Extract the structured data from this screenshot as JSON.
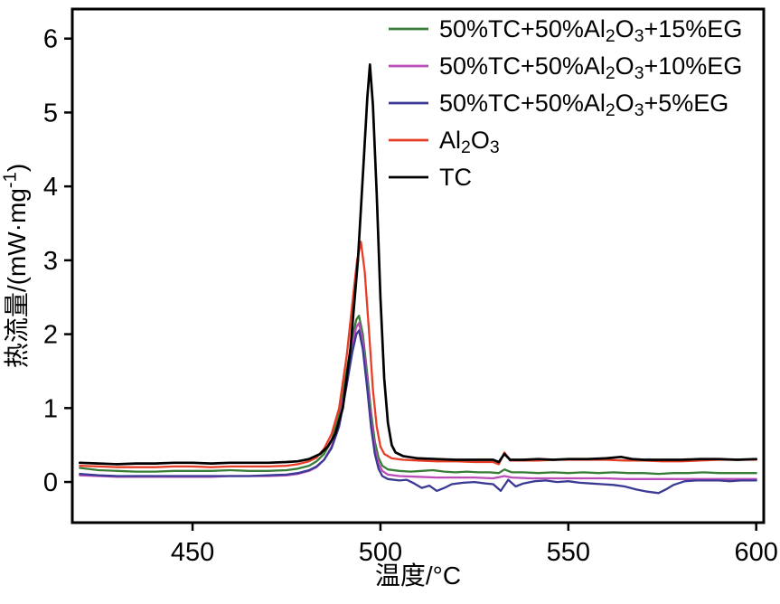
{
  "chart_data": {
    "type": "line",
    "title": "",
    "xlabel": "温度/°C",
    "ylabel": "热流量/(mW·mg^{-1})",
    "xlim": [
      418,
      602
    ],
    "ylim": [
      -0.55,
      6.4
    ],
    "xticks": [
      450,
      500,
      550,
      600
    ],
    "yticks": [
      0,
      1,
      2,
      3,
      4,
      5,
      6
    ],
    "legend_position": "upper right inside, no frame",
    "grid": false,
    "series": [
      {
        "id": "tc-al2o3-15eg",
        "label": "50%TC+50%Al_{2}O_{3}+15%EG",
        "color": "#377d37",
        "peak_x": 494.3,
        "peak_y": 2.25,
        "points": [
          [
            420,
            0.19
          ],
          [
            425,
            0.16
          ],
          [
            430,
            0.15
          ],
          [
            435,
            0.14
          ],
          [
            440,
            0.14
          ],
          [
            445,
            0.15
          ],
          [
            450,
            0.15
          ],
          [
            455,
            0.15
          ],
          [
            460,
            0.16
          ],
          [
            465,
            0.15
          ],
          [
            470,
            0.15
          ],
          [
            475,
            0.16
          ],
          [
            478,
            0.18
          ],
          [
            481,
            0.22
          ],
          [
            483,
            0.28
          ],
          [
            485,
            0.38
          ],
          [
            487,
            0.56
          ],
          [
            489,
            0.9
          ],
          [
            491,
            1.5
          ],
          [
            492.5,
            1.95
          ],
          [
            493.6,
            2.2
          ],
          [
            494.3,
            2.25
          ],
          [
            495.3,
            2.0
          ],
          [
            496.5,
            1.45
          ],
          [
            497.5,
            0.95
          ],
          [
            498.5,
            0.55
          ],
          [
            499.5,
            0.33
          ],
          [
            500.5,
            0.22
          ],
          [
            502,
            0.17
          ],
          [
            505,
            0.15
          ],
          [
            508,
            0.14
          ],
          [
            511,
            0.15
          ],
          [
            514,
            0.16
          ],
          [
            517,
            0.14
          ],
          [
            520,
            0.13
          ],
          [
            523,
            0.14
          ],
          [
            526,
            0.13
          ],
          [
            529,
            0.13
          ],
          [
            531.5,
            0.12
          ],
          [
            533,
            0.17
          ],
          [
            535,
            0.13
          ],
          [
            538,
            0.13
          ],
          [
            542,
            0.12
          ],
          [
            546,
            0.13
          ],
          [
            550,
            0.12
          ],
          [
            554,
            0.13
          ],
          [
            558,
            0.12
          ],
          [
            562,
            0.13
          ],
          [
            566,
            0.12
          ],
          [
            570,
            0.12
          ],
          [
            574,
            0.11
          ],
          [
            578,
            0.12
          ],
          [
            582,
            0.12
          ],
          [
            586,
            0.13
          ],
          [
            590,
            0.12
          ],
          [
            595,
            0.12
          ],
          [
            600,
            0.12
          ]
        ]
      },
      {
        "id": "tc-al2o3-10eg",
        "label": "50%TC+50%Al_{2}O_{3}+10%EG",
        "color": "#bb4dbb",
        "peak_x": 494.3,
        "peak_y": 2.15,
        "points": [
          [
            420,
            0.09
          ],
          [
            425,
            0.08
          ],
          [
            430,
            0.07
          ],
          [
            435,
            0.07
          ],
          [
            440,
            0.07
          ],
          [
            445,
            0.07
          ],
          [
            450,
            0.07
          ],
          [
            455,
            0.07
          ],
          [
            460,
            0.08
          ],
          [
            465,
            0.08
          ],
          [
            470,
            0.08
          ],
          [
            475,
            0.09
          ],
          [
            478,
            0.11
          ],
          [
            481,
            0.15
          ],
          [
            483,
            0.2
          ],
          [
            485,
            0.3
          ],
          [
            487,
            0.48
          ],
          [
            489,
            0.8
          ],
          [
            491,
            1.4
          ],
          [
            492.5,
            1.85
          ],
          [
            493.6,
            2.1
          ],
          [
            494.3,
            2.15
          ],
          [
            495.3,
            1.9
          ],
          [
            496.5,
            1.35
          ],
          [
            497.5,
            0.85
          ],
          [
            498.5,
            0.45
          ],
          [
            499.5,
            0.25
          ],
          [
            500.5,
            0.15
          ],
          [
            502,
            0.1
          ],
          [
            505,
            0.08
          ],
          [
            510,
            0.07
          ],
          [
            515,
            0.06
          ],
          [
            520,
            0.06
          ],
          [
            525,
            0.06
          ],
          [
            530,
            0.05
          ],
          [
            533,
            0.08
          ],
          [
            535,
            0.06
          ],
          [
            540,
            0.05
          ],
          [
            545,
            0.05
          ],
          [
            550,
            0.05
          ],
          [
            555,
            0.05
          ],
          [
            560,
            0.05
          ],
          [
            565,
            0.04
          ],
          [
            570,
            0.04
          ],
          [
            575,
            0.04
          ],
          [
            580,
            0.04
          ],
          [
            585,
            0.04
          ],
          [
            590,
            0.04
          ],
          [
            595,
            0.04
          ],
          [
            600,
            0.04
          ]
        ]
      },
      {
        "id": "tc-al2o3-5eg",
        "label": "50%TC+50%Al_{2}O_{3}+5%EG",
        "color": "#3a3a94",
        "peak_x": 494.3,
        "peak_y": 2.05,
        "points": [
          [
            420,
            0.11
          ],
          [
            425,
            0.09
          ],
          [
            430,
            0.08
          ],
          [
            435,
            0.08
          ],
          [
            440,
            0.08
          ],
          [
            445,
            0.08
          ],
          [
            450,
            0.08
          ],
          [
            455,
            0.08
          ],
          [
            460,
            0.08
          ],
          [
            465,
            0.08
          ],
          [
            470,
            0.09
          ],
          [
            475,
            0.1
          ],
          [
            478,
            0.12
          ],
          [
            481,
            0.16
          ],
          [
            483,
            0.21
          ],
          [
            485,
            0.3
          ],
          [
            487,
            0.46
          ],
          [
            489,
            0.75
          ],
          [
            491,
            1.3
          ],
          [
            492.5,
            1.75
          ],
          [
            493.6,
            2.0
          ],
          [
            494.3,
            2.05
          ],
          [
            495.3,
            1.8
          ],
          [
            496.5,
            1.25
          ],
          [
            497.5,
            0.75
          ],
          [
            498.5,
            0.38
          ],
          [
            499.5,
            0.18
          ],
          [
            500.5,
            0.08
          ],
          [
            502,
            0.04
          ],
          [
            505,
            0.02
          ],
          [
            507,
            0.03
          ],
          [
            509,
            -0.02
          ],
          [
            511,
            -0.08
          ],
          [
            513,
            -0.05
          ],
          [
            515,
            -0.12
          ],
          [
            517,
            -0.08
          ],
          [
            519,
            -0.03
          ],
          [
            522,
            -0.01
          ],
          [
            525,
            0.0
          ],
          [
            528,
            -0.02
          ],
          [
            530,
            -0.03
          ],
          [
            532,
            -0.12
          ],
          [
            534,
            0.03
          ],
          [
            536,
            -0.06
          ],
          [
            538,
            -0.02
          ],
          [
            541,
            0.01
          ],
          [
            544,
            0.02
          ],
          [
            547,
            0.0
          ],
          [
            550,
            0.01
          ],
          [
            553,
            -0.01
          ],
          [
            556,
            -0.02
          ],
          [
            559,
            -0.03
          ],
          [
            562,
            -0.04
          ],
          [
            565,
            -0.06
          ],
          [
            568,
            -0.1
          ],
          [
            571,
            -0.13
          ],
          [
            574,
            -0.15
          ],
          [
            576,
            -0.1
          ],
          [
            578,
            -0.04
          ],
          [
            581,
            0.01
          ],
          [
            584,
            0.02
          ],
          [
            587,
            0.02
          ],
          [
            590,
            0.02
          ],
          [
            593,
            0.01
          ],
          [
            596,
            0.02
          ],
          [
            600,
            0.02
          ]
        ]
      },
      {
        "id": "al2o3",
        "label": "Al_{2}O_{3}",
        "color": "#e83e27",
        "peak_x": 494.8,
        "peak_y": 3.25,
        "points": [
          [
            420,
            0.22
          ],
          [
            425,
            0.21
          ],
          [
            430,
            0.2
          ],
          [
            435,
            0.2
          ],
          [
            440,
            0.2
          ],
          [
            445,
            0.21
          ],
          [
            450,
            0.21
          ],
          [
            455,
            0.2
          ],
          [
            460,
            0.21
          ],
          [
            465,
            0.21
          ],
          [
            470,
            0.21
          ],
          [
            475,
            0.22
          ],
          [
            478,
            0.24
          ],
          [
            481,
            0.28
          ],
          [
            483,
            0.33
          ],
          [
            485,
            0.45
          ],
          [
            487,
            0.65
          ],
          [
            489,
            1.0
          ],
          [
            491,
            1.7
          ],
          [
            492.5,
            2.4
          ],
          [
            493.8,
            3.0
          ],
          [
            494.8,
            3.25
          ],
          [
            495.8,
            2.85
          ],
          [
            497,
            2.0
          ],
          [
            498,
            1.25
          ],
          [
            499,
            0.75
          ],
          [
            500,
            0.48
          ],
          [
            501,
            0.38
          ],
          [
            503,
            0.32
          ],
          [
            506,
            0.3
          ],
          [
            510,
            0.29
          ],
          [
            515,
            0.28
          ],
          [
            520,
            0.28
          ],
          [
            525,
            0.27
          ],
          [
            530,
            0.27
          ],
          [
            531.5,
            0.24
          ],
          [
            533,
            0.4
          ],
          [
            534.5,
            0.29
          ],
          [
            538,
            0.29
          ],
          [
            542,
            0.29
          ],
          [
            546,
            0.3
          ],
          [
            550,
            0.3
          ],
          [
            555,
            0.3
          ],
          [
            560,
            0.3
          ],
          [
            565,
            0.29
          ],
          [
            570,
            0.29
          ],
          [
            575,
            0.28
          ],
          [
            580,
            0.28
          ],
          [
            585,
            0.29
          ],
          [
            590,
            0.3
          ],
          [
            595,
            0.3
          ],
          [
            600,
            0.3
          ]
        ]
      },
      {
        "id": "tc",
        "label": "TC",
        "color": "#000000",
        "peak_x": 497.2,
        "peak_y": 5.65,
        "points": [
          [
            420,
            0.26
          ],
          [
            425,
            0.25
          ],
          [
            430,
            0.24
          ],
          [
            435,
            0.25
          ],
          [
            440,
            0.25
          ],
          [
            445,
            0.26
          ],
          [
            450,
            0.26
          ],
          [
            455,
            0.25
          ],
          [
            460,
            0.26
          ],
          [
            465,
            0.26
          ],
          [
            470,
            0.26
          ],
          [
            475,
            0.27
          ],
          [
            478,
            0.28
          ],
          [
            481,
            0.31
          ],
          [
            484,
            0.38
          ],
          [
            486,
            0.48
          ],
          [
            488,
            0.65
          ],
          [
            490,
            1.0
          ],
          [
            492,
            1.8
          ],
          [
            494,
            3.0
          ],
          [
            495.5,
            4.3
          ],
          [
            496.5,
            5.2
          ],
          [
            497.2,
            5.65
          ],
          [
            498,
            5.1
          ],
          [
            499,
            3.9
          ],
          [
            500,
            2.5
          ],
          [
            501,
            1.4
          ],
          [
            502,
            0.8
          ],
          [
            503,
            0.5
          ],
          [
            504,
            0.4
          ],
          [
            506,
            0.35
          ],
          [
            510,
            0.32
          ],
          [
            515,
            0.31
          ],
          [
            520,
            0.3
          ],
          [
            525,
            0.3
          ],
          [
            530,
            0.3
          ],
          [
            531.5,
            0.27
          ],
          [
            533,
            0.38
          ],
          [
            534.5,
            0.3
          ],
          [
            538,
            0.3
          ],
          [
            542,
            0.31
          ],
          [
            546,
            0.3
          ],
          [
            550,
            0.31
          ],
          [
            555,
            0.31
          ],
          [
            560,
            0.32
          ],
          [
            564,
            0.34
          ],
          [
            567,
            0.31
          ],
          [
            570,
            0.3
          ],
          [
            575,
            0.3
          ],
          [
            580,
            0.3
          ],
          [
            585,
            0.31
          ],
          [
            590,
            0.31
          ],
          [
            595,
            0.3
          ],
          [
            600,
            0.31
          ]
        ]
      }
    ]
  }
}
